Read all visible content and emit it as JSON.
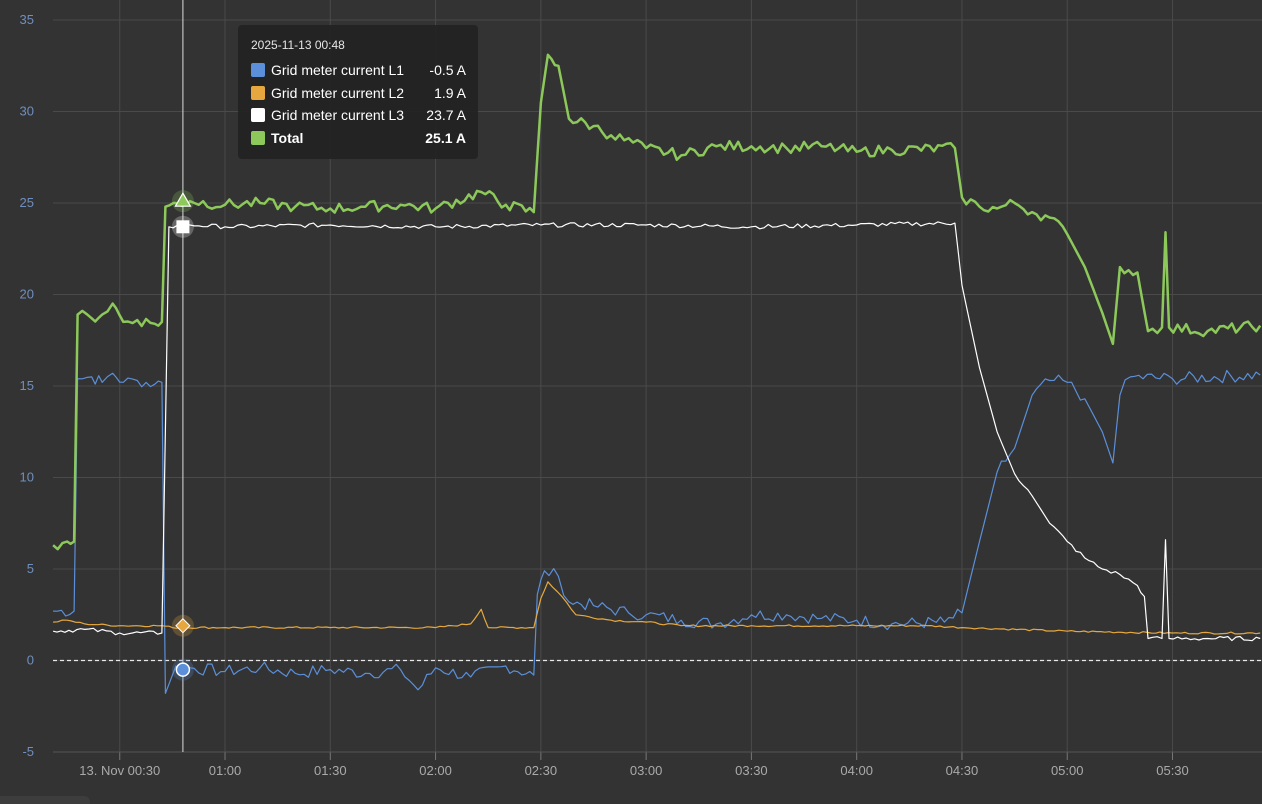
{
  "colors": {
    "background": "#333333",
    "grid": "#4a4a4a",
    "axis_text": "#aaaaaa",
    "y_tick_text": "#6f8fbf",
    "l1": "#5b8fd9",
    "l2": "#e6a83e",
    "l3": "#ffffff",
    "total": "#8cc85a"
  },
  "tooltip": {
    "time": "2025-11-13 00:48",
    "rows": [
      {
        "name": "Grid meter current L1",
        "value": "-0.5 A",
        "color": "#5b8fd9",
        "bold": false
      },
      {
        "name": "Grid meter current L2",
        "value": "1.9 A",
        "color": "#e6a83e",
        "bold": false
      },
      {
        "name": "Grid meter current L3",
        "value": "23.7 A",
        "color": "#ffffff",
        "bold": false
      },
      {
        "name": "Total",
        "value": "25.1 A",
        "color": "#8cc85a",
        "bold": true
      }
    ]
  },
  "chart_data": {
    "type": "line",
    "x_unit": "time",
    "x_start": "00:11",
    "x_end": "05:55",
    "xlim_hours": [
      0.183,
      5.925
    ],
    "ylim": [
      -5,
      35
    ],
    "y_ticks": [
      -5,
      0,
      5,
      10,
      15,
      20,
      25,
      30,
      35
    ],
    "x_ticks": [
      {
        "t": "00:30",
        "label": "13. Nov 00:30"
      },
      {
        "t": "01:00",
        "label": "01:00"
      },
      {
        "t": "01:30",
        "label": "01:30"
      },
      {
        "t": "02:00",
        "label": "02:00"
      },
      {
        "t": "02:30",
        "label": "02:30"
      },
      {
        "t": "03:00",
        "label": "03:00"
      },
      {
        "t": "03:30",
        "label": "03:30"
      },
      {
        "t": "04:00",
        "label": "04:00"
      },
      {
        "t": "04:30",
        "label": "04:30"
      },
      {
        "t": "05:00",
        "label": "05:00"
      },
      {
        "t": "05:30",
        "label": "05:30"
      }
    ],
    "zero_line": 0,
    "grid": true,
    "crosshair_time": "00:48",
    "series": [
      {
        "name": "Grid meter current L1",
        "color": "#5b8fd9",
        "width": 1.2,
        "marker": "circle",
        "marker_value": -0.5,
        "points": [
          [
            "00:11",
            2.7
          ],
          [
            "00:17",
            2.7
          ],
          [
            "00:18",
            15.4
          ],
          [
            "00:22",
            15.5
          ],
          [
            "00:25",
            15.2
          ],
          [
            "00:28",
            15.7
          ],
          [
            "00:31",
            15.2
          ],
          [
            "00:35",
            15.3
          ],
          [
            "00:40",
            15.1
          ],
          [
            "00:42",
            15.2
          ],
          [
            "00:43",
            -1.8
          ],
          [
            "00:46",
            -0.3
          ],
          [
            "00:50",
            -0.4
          ],
          [
            "01:00",
            -0.6
          ],
          [
            "01:10",
            -0.4
          ],
          [
            "01:20",
            -0.7
          ],
          [
            "01:30",
            -0.5
          ],
          [
            "01:40",
            -0.7
          ],
          [
            "01:50",
            -0.5
          ],
          [
            "01:55",
            -1.6
          ],
          [
            "02:00",
            -0.4
          ],
          [
            "02:10",
            -0.9
          ],
          [
            "02:20",
            -0.3
          ],
          [
            "02:28",
            -0.8
          ],
          [
            "02:29",
            3.6
          ],
          [
            "02:31",
            4.9
          ],
          [
            "02:35",
            4.6
          ],
          [
            "02:38",
            3.2
          ],
          [
            "02:45",
            3.0
          ],
          [
            "02:55",
            2.6
          ],
          [
            "03:00",
            2.5
          ],
          [
            "03:10",
            2.2
          ],
          [
            "03:20",
            2.0
          ],
          [
            "03:30",
            2.5
          ],
          [
            "03:40",
            2.5
          ],
          [
            "03:50",
            2.3
          ],
          [
            "04:00",
            2.2
          ],
          [
            "04:10",
            2.0
          ],
          [
            "04:25",
            2.1
          ],
          [
            "04:30",
            2.6
          ],
          [
            "04:35",
            6.5
          ],
          [
            "04:40",
            10.3
          ],
          [
            "04:45",
            11.6
          ],
          [
            "04:50",
            14.5
          ],
          [
            "04:55",
            15.3
          ],
          [
            "05:00",
            15.2
          ],
          [
            "05:05",
            14.3
          ],
          [
            "05:10",
            12.5
          ],
          [
            "05:13",
            10.8
          ],
          [
            "05:15",
            14.5
          ],
          [
            "05:18",
            15.5
          ],
          [
            "05:30",
            15.4
          ],
          [
            "05:55",
            15.6
          ]
        ]
      },
      {
        "name": "Grid meter current L2",
        "color": "#e6a83e",
        "width": 1.2,
        "marker": "diamond",
        "marker_value": 1.9,
        "points": [
          [
            "00:11",
            2.1
          ],
          [
            "00:15",
            2.2
          ],
          [
            "00:20",
            2.0
          ],
          [
            "00:30",
            1.9
          ],
          [
            "00:42",
            1.9
          ],
          [
            "00:45",
            1.8
          ],
          [
            "01:00",
            1.8
          ],
          [
            "01:30",
            1.8
          ],
          [
            "02:00",
            1.8
          ],
          [
            "02:10",
            2.0
          ],
          [
            "02:13",
            2.8
          ],
          [
            "02:15",
            1.8
          ],
          [
            "02:28",
            1.8
          ],
          [
            "02:30",
            3.4
          ],
          [
            "02:32",
            4.3
          ],
          [
            "02:36",
            3.5
          ],
          [
            "02:40",
            2.5
          ],
          [
            "02:50",
            2.2
          ],
          [
            "03:00",
            2.1
          ],
          [
            "03:10",
            1.9
          ],
          [
            "03:30",
            1.9
          ],
          [
            "04:00",
            1.9
          ],
          [
            "04:20",
            1.9
          ],
          [
            "04:30",
            1.8
          ],
          [
            "05:00",
            1.6
          ],
          [
            "05:30",
            1.5
          ],
          [
            "05:55",
            1.5
          ]
        ]
      },
      {
        "name": "Grid meter current L3",
        "color": "#ffffff",
        "width": 1.2,
        "marker": "square",
        "marker_value": 23.7,
        "points": [
          [
            "00:11",
            1.6
          ],
          [
            "00:20",
            1.7
          ],
          [
            "00:30",
            1.5
          ],
          [
            "00:42",
            1.5
          ],
          [
            "00:44",
            23.7
          ],
          [
            "00:50",
            23.8
          ],
          [
            "01:00",
            23.7
          ],
          [
            "01:30",
            23.8
          ],
          [
            "02:00",
            23.7
          ],
          [
            "02:30",
            23.8
          ],
          [
            "03:00",
            23.8
          ],
          [
            "03:30",
            23.7
          ],
          [
            "04:00",
            23.8
          ],
          [
            "04:28",
            23.9
          ],
          [
            "04:30",
            20.5
          ],
          [
            "04:35",
            16.0
          ],
          [
            "04:40",
            12.5
          ],
          [
            "04:45",
            10.2
          ],
          [
            "04:50",
            9.0
          ],
          [
            "04:55",
            7.5
          ],
          [
            "05:00",
            6.5
          ],
          [
            "05:05",
            5.6
          ],
          [
            "05:10",
            5.0
          ],
          [
            "05:15",
            4.7
          ],
          [
            "05:20",
            4.1
          ],
          [
            "05:22",
            3.5
          ],
          [
            "05:23",
            1.2
          ],
          [
            "05:27",
            1.2
          ],
          [
            "05:28",
            6.6
          ],
          [
            "05:29",
            1.2
          ],
          [
            "05:40",
            1.2
          ],
          [
            "05:55",
            1.2
          ]
        ]
      },
      {
        "name": "Total",
        "color": "#8cc85a",
        "width": 2.5,
        "marker": "triangle",
        "marker_value": 25.1,
        "points": [
          [
            "00:11",
            6.3
          ],
          [
            "00:15",
            6.5
          ],
          [
            "00:17",
            6.5
          ],
          [
            "00:18",
            18.9
          ],
          [
            "00:22",
            18.7
          ],
          [
            "00:25",
            18.9
          ],
          [
            "00:28",
            19.5
          ],
          [
            "00:31",
            18.5
          ],
          [
            "00:35",
            18.6
          ],
          [
            "00:40",
            18.4
          ],
          [
            "00:42",
            18.5
          ],
          [
            "00:43",
            24.8
          ],
          [
            "00:50",
            25.1
          ],
          [
            "01:00",
            24.9
          ],
          [
            "01:10",
            25.0
          ],
          [
            "01:20",
            24.8
          ],
          [
            "01:30",
            24.7
          ],
          [
            "01:40",
            24.8
          ],
          [
            "01:50",
            24.9
          ],
          [
            "02:00",
            24.7
          ],
          [
            "02:13",
            25.6
          ],
          [
            "02:20",
            24.9
          ],
          [
            "02:28",
            24.5
          ],
          [
            "02:30",
            30.5
          ],
          [
            "02:32",
            33.1
          ],
          [
            "02:35",
            32.5
          ],
          [
            "02:38",
            29.6
          ],
          [
            "02:45",
            29.2
          ],
          [
            "02:50",
            28.7
          ],
          [
            "03:00",
            28.0
          ],
          [
            "03:10",
            27.6
          ],
          [
            "03:20",
            28.1
          ],
          [
            "03:30",
            28.1
          ],
          [
            "03:40",
            28.0
          ],
          [
            "03:50",
            28.1
          ],
          [
            "04:00",
            27.8
          ],
          [
            "04:10",
            27.9
          ],
          [
            "04:28",
            28.0
          ],
          [
            "04:30",
            25.3
          ],
          [
            "04:35",
            24.8
          ],
          [
            "04:40",
            24.7
          ],
          [
            "04:45",
            25.0
          ],
          [
            "04:50",
            24.5
          ],
          [
            "04:55",
            24.2
          ],
          [
            "05:00",
            23.3
          ],
          [
            "05:05",
            21.5
          ],
          [
            "05:10",
            19.0
          ],
          [
            "05:13",
            17.3
          ],
          [
            "05:15",
            21.5
          ],
          [
            "05:20",
            21.2
          ],
          [
            "05:23",
            18.0
          ],
          [
            "05:27",
            18.2
          ],
          [
            "05:28",
            23.4
          ],
          [
            "05:29",
            18.2
          ],
          [
            "05:40",
            18.0
          ],
          [
            "05:55",
            18.3
          ]
        ]
      }
    ]
  }
}
